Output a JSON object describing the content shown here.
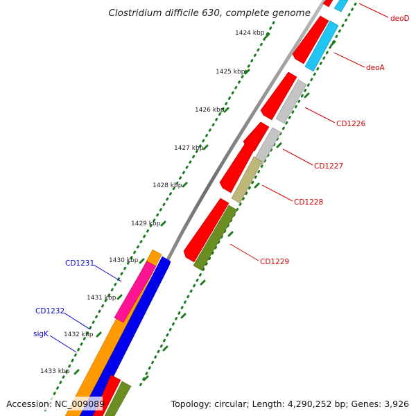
{
  "title": "Clostridium difficile 630, complete genome",
  "accession": "Accession: NC_009089",
  "topology": "Topology: circular; Length: 4,290,252 bp; Genes: 3,926",
  "ticks": [
    "1424 kbp",
    "1425 kbp",
    "1426 kbp",
    "1427 kbp",
    "1428 kbp",
    "1429 kbp",
    "1430 kbp",
    "1431 kbp",
    "1432 kbp",
    "1433 kbp"
  ],
  "gene_labels_right": [
    "deoD",
    "deoA",
    "CD1226",
    "CD1227",
    "CD1228",
    "CD1229"
  ],
  "gene_labels_left": [
    "CD1231",
    "CD1232",
    "sigK"
  ],
  "colors": {
    "backbone": "#8a8a8a",
    "tick_dots": "#1e7a1e",
    "forward_cds": "#ff0000",
    "right_label": "#d40000",
    "left_label": "#0000cc",
    "deo_genes": "#22c4f2",
    "cd1226": "#c4c4c4",
    "cd1228": "#bdb87a",
    "cd1229": "#6b8e23",
    "orange_gene": "#ff9a00",
    "pink_gene": "#ff1493",
    "blue_gene": "#0000ee"
  }
}
